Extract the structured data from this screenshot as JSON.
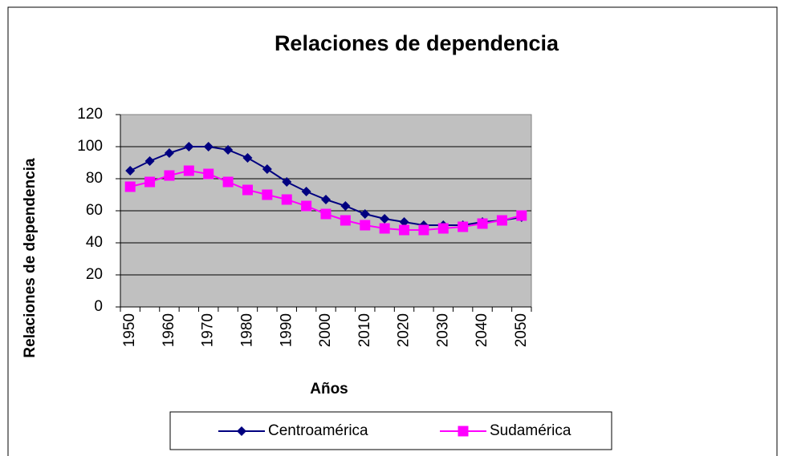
{
  "chart_data": {
    "type": "line",
    "title": "Relaciones de dependencia",
    "x_label": "Años",
    "y_label": "Relaciones de dependencia",
    "categories": [
      "1950",
      null,
      "1960",
      null,
      "1970",
      null,
      "1980",
      null,
      "1990",
      null,
      "2000",
      null,
      "2010",
      null,
      "2020",
      null,
      "2030",
      null,
      "2040",
      null,
      "2050"
    ],
    "series": [
      {
        "name": "Centroamérica",
        "color": "#000080",
        "marker": "diamond",
        "values": [
          85,
          91,
          96,
          100,
          100,
          98,
          93,
          86,
          78,
          72,
          67,
          63,
          58,
          55,
          53,
          51,
          51,
          51,
          53,
          54,
          56
        ]
      },
      {
        "name": "Sudamérica",
        "color": "#ff00ff",
        "marker": "square",
        "values": [
          75,
          78,
          82,
          85,
          83,
          78,
          73,
          70,
          67,
          63,
          58,
          54,
          51,
          49,
          48,
          48,
          49,
          50,
          52,
          54,
          57
        ]
      }
    ],
    "ylim": [
      0,
      120
    ],
    "yticks": [
      0,
      20,
      40,
      60,
      80,
      100,
      120
    ],
    "grid": true,
    "legend": "bottom"
  }
}
